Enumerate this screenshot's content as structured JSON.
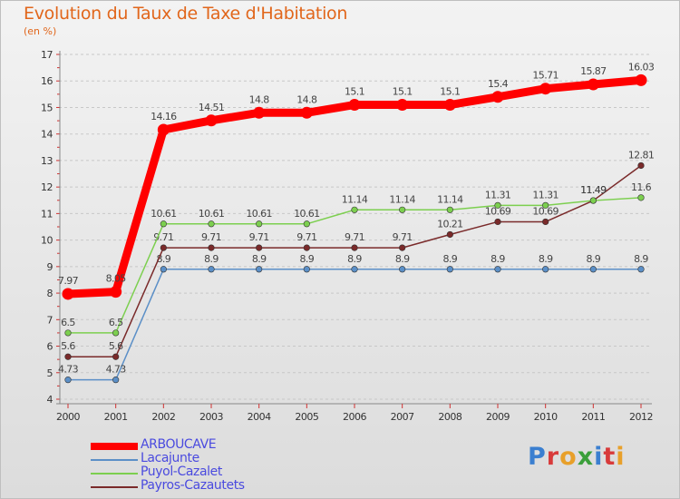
{
  "title": "Evolution du Taux de Taxe d'Habitation",
  "subtitle": "(en %)",
  "logo": {
    "text": "Proxiti",
    "colors": [
      "#3b7fd0",
      "#d83b3b",
      "#e8a02a",
      "#3b9f3b",
      "#3b7fd0",
      "#d83b3b",
      "#e8a02a"
    ]
  },
  "chart_data": {
    "type": "line",
    "title": "Evolution du Taux de Taxe d'Habitation",
    "subtitle": "(en %)",
    "xlabel": "",
    "ylabel": "",
    "x": [
      "2000",
      "2001",
      "2002",
      "2003",
      "2004",
      "2005",
      "2006",
      "2007",
      "2008",
      "2009",
      "2010",
      "2011",
      "2012"
    ],
    "ylim": [
      4,
      17
    ],
    "yticks": [
      4,
      5,
      6,
      7,
      8,
      9,
      10,
      11,
      12,
      13,
      14,
      15,
      16,
      17
    ],
    "grid": "horizontal dashed",
    "legend_position": "bottom-left",
    "series": [
      {
        "name": "Lacajunte",
        "color": "#5b8fc7",
        "values": [
          4.73,
          4.73,
          8.9,
          8.9,
          8.9,
          8.9,
          8.9,
          8.9,
          8.9,
          8.9,
          8.9,
          8.9,
          8.9
        ],
        "labels": [
          "4.73",
          "4.73",
          "8.9",
          "8.9",
          "8.9",
          "8.9",
          "8.9",
          "8.9",
          "8.9",
          "8.9",
          "8.9",
          "8.9",
          "8.9"
        ]
      },
      {
        "name": "Payros-Cazautets",
        "color": "#7a2a2a",
        "values": [
          5.6,
          5.6,
          9.71,
          9.71,
          9.71,
          9.71,
          9.71,
          9.71,
          10.21,
          10.69,
          10.69,
          11.49,
          12.81
        ],
        "labels": [
          "5.6",
          "5.6",
          "9.71",
          "9.71",
          "9.71",
          "9.71",
          "9.71",
          "9.71",
          "10.21",
          "10.69",
          "10.69",
          "11.49",
          "12.81"
        ]
      },
      {
        "name": "Puyol-Cazalet",
        "color": "#7ccf4f",
        "values": [
          6.5,
          6.5,
          10.61,
          10.61,
          10.61,
          10.61,
          11.14,
          11.14,
          11.14,
          11.31,
          11.31,
          11.49,
          11.6
        ],
        "labels": [
          "6.5",
          "6.5",
          "10.61",
          "10.61",
          "10.61",
          "10.61",
          "11.14",
          "11.14",
          "11.14",
          "11.31",
          "11.31",
          "11.49",
          "11.6"
        ]
      },
      {
        "name": "ARBOUCAVE",
        "color": "#ff0000",
        "values": [
          7.97,
          8.05,
          14.16,
          14.51,
          14.8,
          14.8,
          15.1,
          15.1,
          15.1,
          15.4,
          15.71,
          15.87,
          16.03
        ],
        "labels": [
          "7.97",
          "8.05",
          "14.16",
          "14.51",
          "14.8",
          "14.8",
          "15.1",
          "15.1",
          "15.1",
          "15.4",
          "15.71",
          "15.87",
          "16.03"
        ]
      }
    ],
    "legend": [
      {
        "name": "ARBOUCAVE",
        "color": "#ff0000",
        "text_color": "#4a4adf"
      },
      {
        "name": "Lacajunte",
        "color": "#5b8fc7",
        "text_color": "#4a4adf"
      },
      {
        "name": "Puyol-Cazalet",
        "color": "#7ccf4f",
        "text_color": "#4a4adf"
      },
      {
        "name": "Payros-Cazautets",
        "color": "#7a2a2a",
        "text_color": "#4a4adf"
      }
    ]
  }
}
